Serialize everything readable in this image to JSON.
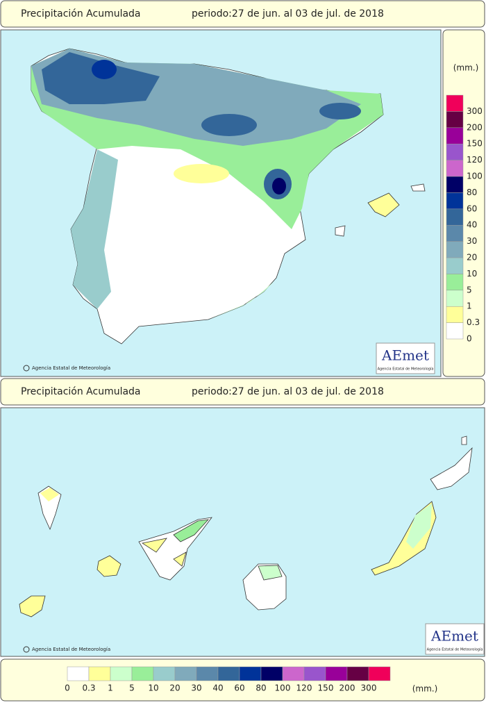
{
  "top_header": {
    "title": "Precipitación Acumulada",
    "period": "periodo:27 de jun. al 03 de jul. de 2018"
  },
  "peninsula_map": {
    "credit": "Agencia Estatal de Meteorología",
    "logo": {
      "text": "AEmet",
      "subtitle": "Agencia Estatal de Meteorología"
    }
  },
  "side_legend": {
    "unit": "(mm.)"
  },
  "bottom_header": {
    "title": "Precipitación Acumulada",
    "period": "periodo:27 de jun. al 03 de jul. de 2018"
  },
  "canary_map": {
    "credit": "Agencia Estatal de Meteorología",
    "logo": {
      "text": "AEmet",
      "subtitle": "Agencia Estatal de Meteorología"
    }
  },
  "bottom_legend": {
    "unit": "(mm.)"
  },
  "legend": [
    {
      "label": "0",
      "color": "#ffffff"
    },
    {
      "label": "0.3",
      "color": "#ffff99"
    },
    {
      "label": "1",
      "color": "#ccffcc"
    },
    {
      "label": "5",
      "color": "#99ee99"
    },
    {
      "label": "10",
      "color": "#99cccc"
    },
    {
      "label": "20",
      "color": "#80aabb"
    },
    {
      "label": "30",
      "color": "#5b88aa"
    },
    {
      "label": "40",
      "color": "#336699"
    },
    {
      "label": "60",
      "color": "#003399"
    },
    {
      "label": "80",
      "color": "#000066"
    },
    {
      "label": "100",
      "color": "#cc66cc"
    },
    {
      "label": "120",
      "color": "#9955cc"
    },
    {
      "label": "150",
      "color": "#990099"
    },
    {
      "label": "200",
      "color": "#660044"
    },
    {
      "label": "300",
      "color": "#f0005a"
    }
  ]
}
